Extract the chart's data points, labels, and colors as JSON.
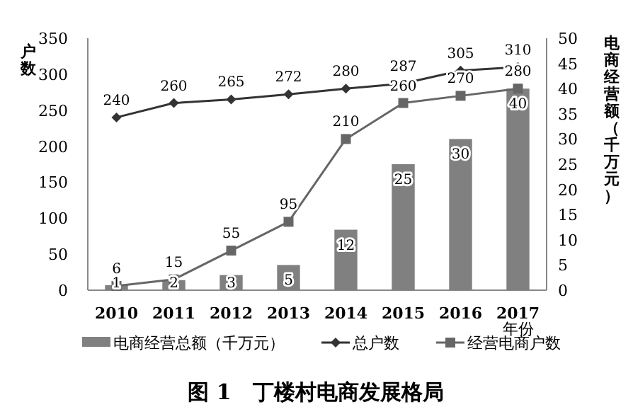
{
  "chart_data": {
    "type": "bar",
    "title": "图 1　丁楼村电商发展格局",
    "xlabel": "年份",
    "ylabel": "户数",
    "y2label": "电商经营额（千万元）",
    "categories": [
      "2010",
      "2011",
      "2012",
      "2013",
      "2014",
      "2015",
      "2016",
      "2017"
    ],
    "series": [
      {
        "name": "电商经营总额（千万元）",
        "axis": "y2",
        "color": "#808080",
        "values": [
          1,
          2,
          3,
          5,
          12,
          25,
          30,
          40
        ]
      },
      {
        "name": "总户数",
        "type": "line",
        "color": "#333333",
        "marker": "diamond",
        "values": [
          240,
          260,
          265,
          272,
          280,
          287,
          305,
          310
        ]
      },
      {
        "name": "经营电商户数",
        "type": "line",
        "color": "#666666",
        "marker": "square",
        "values": [
          6,
          15,
          55,
          95,
          210,
          260,
          270,
          280
        ]
      }
    ],
    "ylim": [
      0,
      350
    ],
    "yticks": [
      0,
      50,
      100,
      150,
      200,
      250,
      300,
      350
    ],
    "y2lim": [
      0,
      50
    ],
    "y2ticks": [
      0,
      5,
      10,
      15,
      20,
      25,
      30,
      35,
      40,
      45,
      50
    ],
    "data_labels": true,
    "grid": false,
    "legend": "bottom"
  }
}
